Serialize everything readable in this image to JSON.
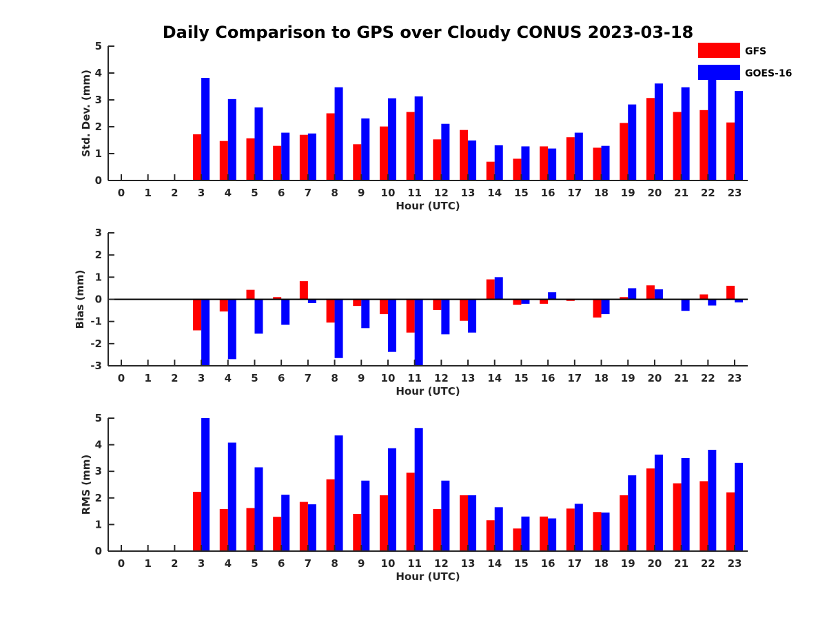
{
  "chart_data": [
    {
      "type": "bar",
      "title": "Daily Comparison to GPS over Cloudy CONUS 2023-03-18",
      "xlabel": "Hour (UTC)",
      "ylabel": "Std. Dev. (mm)",
      "ylim": [
        0,
        5
      ],
      "yticks": [
        0,
        1,
        2,
        3,
        4,
        5
      ],
      "categories": [
        "0",
        "1",
        "2",
        "3",
        "4",
        "5",
        "6",
        "7",
        "8",
        "9",
        "10",
        "11",
        "12",
        "13",
        "14",
        "15",
        "16",
        "17",
        "18",
        "19",
        "20",
        "21",
        "22",
        "23"
      ],
      "series": [
        {
          "name": "GFS",
          "color": "#ff0000",
          "values": [
            null,
            null,
            null,
            1.72,
            1.47,
            1.57,
            1.29,
            1.7,
            2.5,
            1.35,
            2.01,
            2.55,
            1.53,
            1.88,
            0.7,
            0.81,
            1.27,
            1.61,
            1.22,
            2.14,
            3.07,
            2.55,
            2.62,
            2.16
          ]
        },
        {
          "name": "GOES-16",
          "color": "#0000ff",
          "values": [
            null,
            null,
            null,
            3.82,
            3.03,
            2.72,
            1.78,
            1.75,
            3.47,
            2.31,
            3.06,
            3.13,
            2.11,
            1.49,
            1.31,
            1.27,
            1.19,
            1.78,
            1.29,
            2.83,
            3.61,
            3.47,
            3.8,
            3.33
          ]
        }
      ],
      "legend": "top-right"
    },
    {
      "type": "bar",
      "title": "",
      "xlabel": "Hour (UTC)",
      "ylabel": "Bias (mm)",
      "ylim": [
        -3,
        3
      ],
      "yticks": [
        -3,
        -2,
        -1,
        0,
        1,
        2,
        3
      ],
      "categories": [
        "0",
        "1",
        "2",
        "3",
        "4",
        "5",
        "6",
        "7",
        "8",
        "9",
        "10",
        "11",
        "12",
        "13",
        "14",
        "15",
        "16",
        "17",
        "18",
        "19",
        "20",
        "21",
        "22",
        "23"
      ],
      "series": [
        {
          "name": "GFS",
          "color": "#ff0000",
          "values": [
            null,
            null,
            null,
            -1.4,
            -0.55,
            0.43,
            0.1,
            0.82,
            -1.05,
            -0.3,
            -0.67,
            -1.5,
            -0.48,
            -0.97,
            0.9,
            -0.25,
            -0.2,
            -0.07,
            -0.82,
            0.1,
            0.63,
            -0.03,
            0.22,
            0.61
          ]
        },
        {
          "name": "GOES-16",
          "color": "#0000ff",
          "values": [
            null,
            null,
            null,
            -3.0,
            -2.7,
            -1.55,
            -1.15,
            -0.17,
            -2.65,
            -1.3,
            -2.37,
            -3.0,
            -1.58,
            -1.5,
            1.0,
            -0.2,
            0.32,
            0.0,
            -0.67,
            0.5,
            0.45,
            -0.52,
            -0.28,
            -0.14
          ]
        }
      ]
    },
    {
      "type": "bar",
      "title": "",
      "xlabel": "Hour (UTC)",
      "ylabel": "RMS (mm)",
      "ylim": [
        0,
        5
      ],
      "yticks": [
        0,
        1,
        2,
        3,
        4,
        5
      ],
      "categories": [
        "0",
        "1",
        "2",
        "3",
        "4",
        "5",
        "6",
        "7",
        "8",
        "9",
        "10",
        "11",
        "12",
        "13",
        "14",
        "15",
        "16",
        "17",
        "18",
        "19",
        "20",
        "21",
        "22",
        "23"
      ],
      "series": [
        {
          "name": "GFS",
          "color": "#ff0000",
          "values": [
            null,
            null,
            null,
            2.23,
            1.58,
            1.62,
            1.29,
            1.85,
            2.7,
            1.4,
            2.1,
            2.95,
            1.58,
            2.1,
            1.16,
            0.85,
            1.3,
            1.6,
            1.47,
            2.1,
            3.11,
            2.55,
            2.63,
            2.21
          ]
        },
        {
          "name": "GOES-16",
          "color": "#0000ff",
          "values": [
            null,
            null,
            null,
            5.0,
            4.08,
            3.15,
            2.12,
            1.76,
            4.35,
            2.65,
            3.87,
            4.63,
            2.65,
            2.1,
            1.65,
            1.3,
            1.23,
            1.78,
            1.45,
            2.85,
            3.63,
            3.5,
            3.81,
            3.32
          ]
        }
      ]
    }
  ]
}
